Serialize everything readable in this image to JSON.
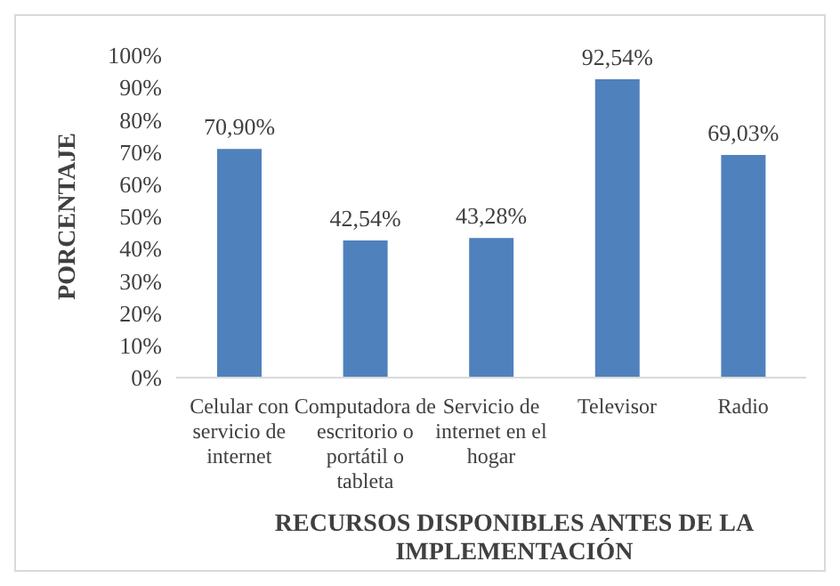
{
  "chart_data": {
    "type": "bar",
    "xlabel": "RECURSOS DISPONIBLES ANTES DE LA IMPLEMENTACIÓN",
    "ylabel": "PORCENTAJE",
    "categories": [
      "Celular con servicio de internet",
      "Computadora de escritorio o portátil o tableta",
      "Servicio de internet en el hogar",
      "Televisor",
      "Radio"
    ],
    "values": [
      70.9,
      42.54,
      43.28,
      92.54,
      69.03
    ],
    "value_labels": [
      "70,90%",
      "42,54%",
      "43,28%",
      "92,54%",
      "69,03%"
    ],
    "color": "#4f81bd",
    "ylim": [
      0,
      100
    ],
    "yticks": [
      {
        "value": 0,
        "label": "0%"
      },
      {
        "value": 10,
        "label": "10%"
      },
      {
        "value": 20,
        "label": "20%"
      },
      {
        "value": 30,
        "label": "30%"
      },
      {
        "value": 40,
        "label": "40%"
      },
      {
        "value": 50,
        "label": "50%"
      },
      {
        "value": 60,
        "label": "60%"
      },
      {
        "value": 70,
        "label": "70%"
      },
      {
        "value": 80,
        "label": "80%"
      },
      {
        "value": 90,
        "label": "90%"
      },
      {
        "value": 100,
        "label": "100%"
      }
    ],
    "grid": false,
    "legend": false
  }
}
